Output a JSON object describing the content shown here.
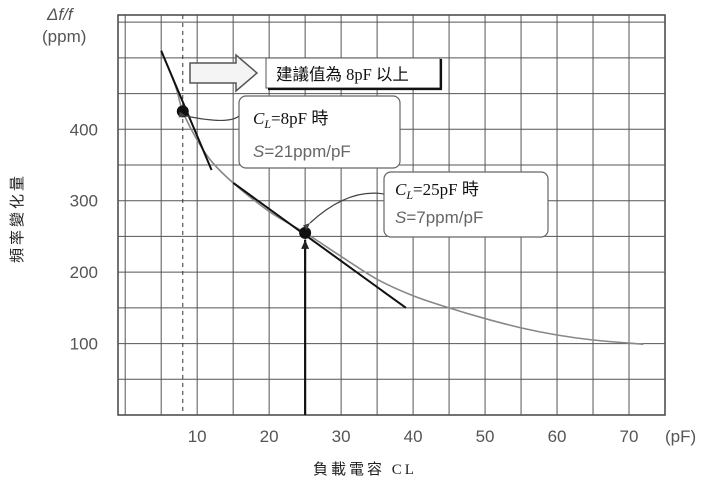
{
  "chart_data": {
    "type": "line",
    "xlabel": "負載電容 CL",
    "xunit": "(pF)",
    "ylabel": "頻率變化量",
    "yunit_top": "Δf/f",
    "yunit_bottom": "(ppm)",
    "xlim": [
      -1,
      75
    ],
    "ylim": [
      0,
      560
    ],
    "xticks": [
      10,
      20,
      30,
      40,
      50,
      60,
      70
    ],
    "yticks": [
      100,
      200,
      300,
      400
    ],
    "grid": true,
    "series": [
      {
        "x": [
          5,
          7,
          8,
          10,
          12,
          15,
          20,
          25,
          30,
          35,
          40,
          45,
          50,
          55,
          60,
          65,
          72
        ],
        "y": [
          510,
          460,
          425,
          385,
          355,
          325,
          285,
          255,
          222,
          190,
          167,
          150,
          135,
          122,
          112,
          105,
          99
        ]
      }
    ],
    "tangent_lines": [
      {
        "x": [
          5,
          12
        ],
        "y": [
          510,
          343
        ]
      },
      {
        "x": [
          15,
          39
        ],
        "y": [
          325,
          150
        ]
      }
    ],
    "points": [
      {
        "x": 8,
        "y": 425
      },
      {
        "x": 25,
        "y": 255
      }
    ],
    "vertical_markers": [
      {
        "x": 8,
        "style": "dashed"
      },
      {
        "x": 25,
        "style": "solid-arrow"
      }
    ],
    "annotations": {
      "recommend": "建議值為 8pF 以上",
      "point1": {
        "cl_prefix": "C",
        "cl_sub": "L",
        "cl_value": "=8pF 時",
        "s_label": "S",
        "s_value": "=21ppm/pF"
      },
      "point2": {
        "cl_prefix": "C",
        "cl_sub": "L",
        "cl_value": "=25pF 時",
        "s_label": "S",
        "s_value": "=7ppm/pF"
      }
    }
  }
}
